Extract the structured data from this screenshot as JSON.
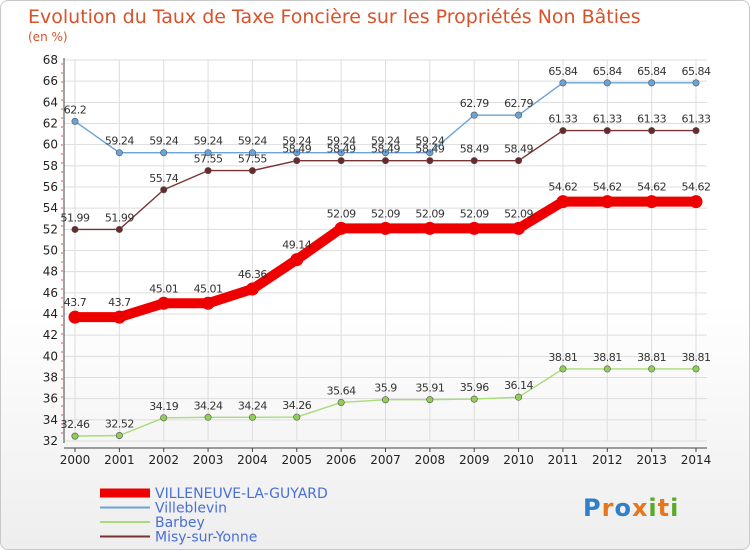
{
  "chart_data": {
    "type": "line",
    "title": "Evolution du Taux de Taxe Foncière sur les Propriétés Non Bâties",
    "ylabel": "(en %)",
    "xlabel": "",
    "categories": [
      "2000",
      "2001",
      "2002",
      "2003",
      "2004",
      "2005",
      "2006",
      "2007",
      "2008",
      "2009",
      "2010",
      "2011",
      "2012",
      "2013",
      "2014"
    ],
    "ylim": [
      32,
      68
    ],
    "yticks": [
      32,
      34,
      36,
      38,
      40,
      42,
      44,
      46,
      48,
      50,
      52,
      54,
      56,
      58,
      60,
      62,
      64,
      66,
      68
    ],
    "grid": true,
    "legend_position": "bottom-left",
    "series": [
      {
        "name": "Villeblevin",
        "color": "#6aa3d8",
        "point_color": "#6aa3d8",
        "values": [
          62.2,
          59.24,
          59.24,
          59.24,
          59.24,
          59.24,
          59.24,
          59.24,
          59.24,
          62.79,
          62.79,
          65.84,
          65.84,
          65.84,
          65.84
        ],
        "labels": [
          "62.2",
          "59.24",
          "59.24",
          "59.24",
          "59.24",
          "59.24",
          "59.24",
          "59.24",
          "59.24",
          "62.79",
          "62.79",
          "65.84",
          "65.84",
          "65.84",
          "65.84"
        ]
      },
      {
        "name": "Misy-sur-Yonne",
        "color": "#7a3333",
        "point_color": "#6b2a2a",
        "values": [
          51.99,
          51.99,
          55.74,
          57.55,
          57.55,
          58.49,
          58.49,
          58.49,
          58.49,
          58.49,
          58.49,
          61.33,
          61.33,
          61.33,
          61.33
        ],
        "labels": [
          "51.99",
          "51.99",
          "55.74",
          "57.55",
          "57.55",
          "58.49",
          "58.49",
          "58.49",
          "58.49",
          "58.49",
          "58.49",
          "61.33",
          "61.33",
          "61.33",
          "61.33"
        ]
      },
      {
        "name": "Barbey",
        "color": "#a8dc78",
        "point_color": "#8fcf55",
        "values": [
          32.46,
          32.52,
          34.19,
          34.24,
          34.24,
          34.26,
          35.64,
          35.9,
          35.91,
          35.96,
          36.14,
          38.81,
          38.81,
          38.81,
          38.81
        ],
        "labels": [
          "32.46",
          "32.52",
          "34.19",
          "34.24",
          "34.24",
          "34.26",
          "35.64",
          "35.9",
          "35.91",
          "35.96",
          "36.14",
          "38.81",
          "38.81",
          "38.81",
          "38.81"
        ]
      },
      {
        "name": "VILLENEUVE-LA-GUYARD",
        "color": "#ee0000",
        "point_color": "#ee0000",
        "highlight": true,
        "values": [
          43.7,
          43.7,
          45.01,
          45.01,
          46.36,
          49.14,
          52.09,
          52.09,
          52.09,
          52.09,
          52.09,
          54.62,
          54.62,
          54.62,
          54.62
        ],
        "labels": [
          "43.7",
          "43.7",
          "45.01",
          "45.01",
          "46.36",
          "49.14",
          "52.09",
          "52.09",
          "52.09",
          "52.09",
          "52.09",
          "54.62",
          "54.62",
          "54.62",
          "54.62"
        ]
      }
    ]
  },
  "legend": {
    "items": [
      {
        "name": "VILLENEUVE-LA-GUYARD",
        "color": "#ee0000"
      },
      {
        "name": "Villeblevin",
        "color": "#6aa3d8"
      },
      {
        "name": "Barbey",
        "color": "#a8dc78"
      },
      {
        "name": "Misy-sur-Yonne",
        "color": "#7a3333"
      }
    ]
  },
  "logo": {
    "text": "Proxiti",
    "letter_colors": [
      "#2f7fc9",
      "#e8761c",
      "#2f7fc9",
      "#e8761c",
      "#5aaa2a",
      "#e8761c",
      "#5aaa2a"
    ]
  }
}
